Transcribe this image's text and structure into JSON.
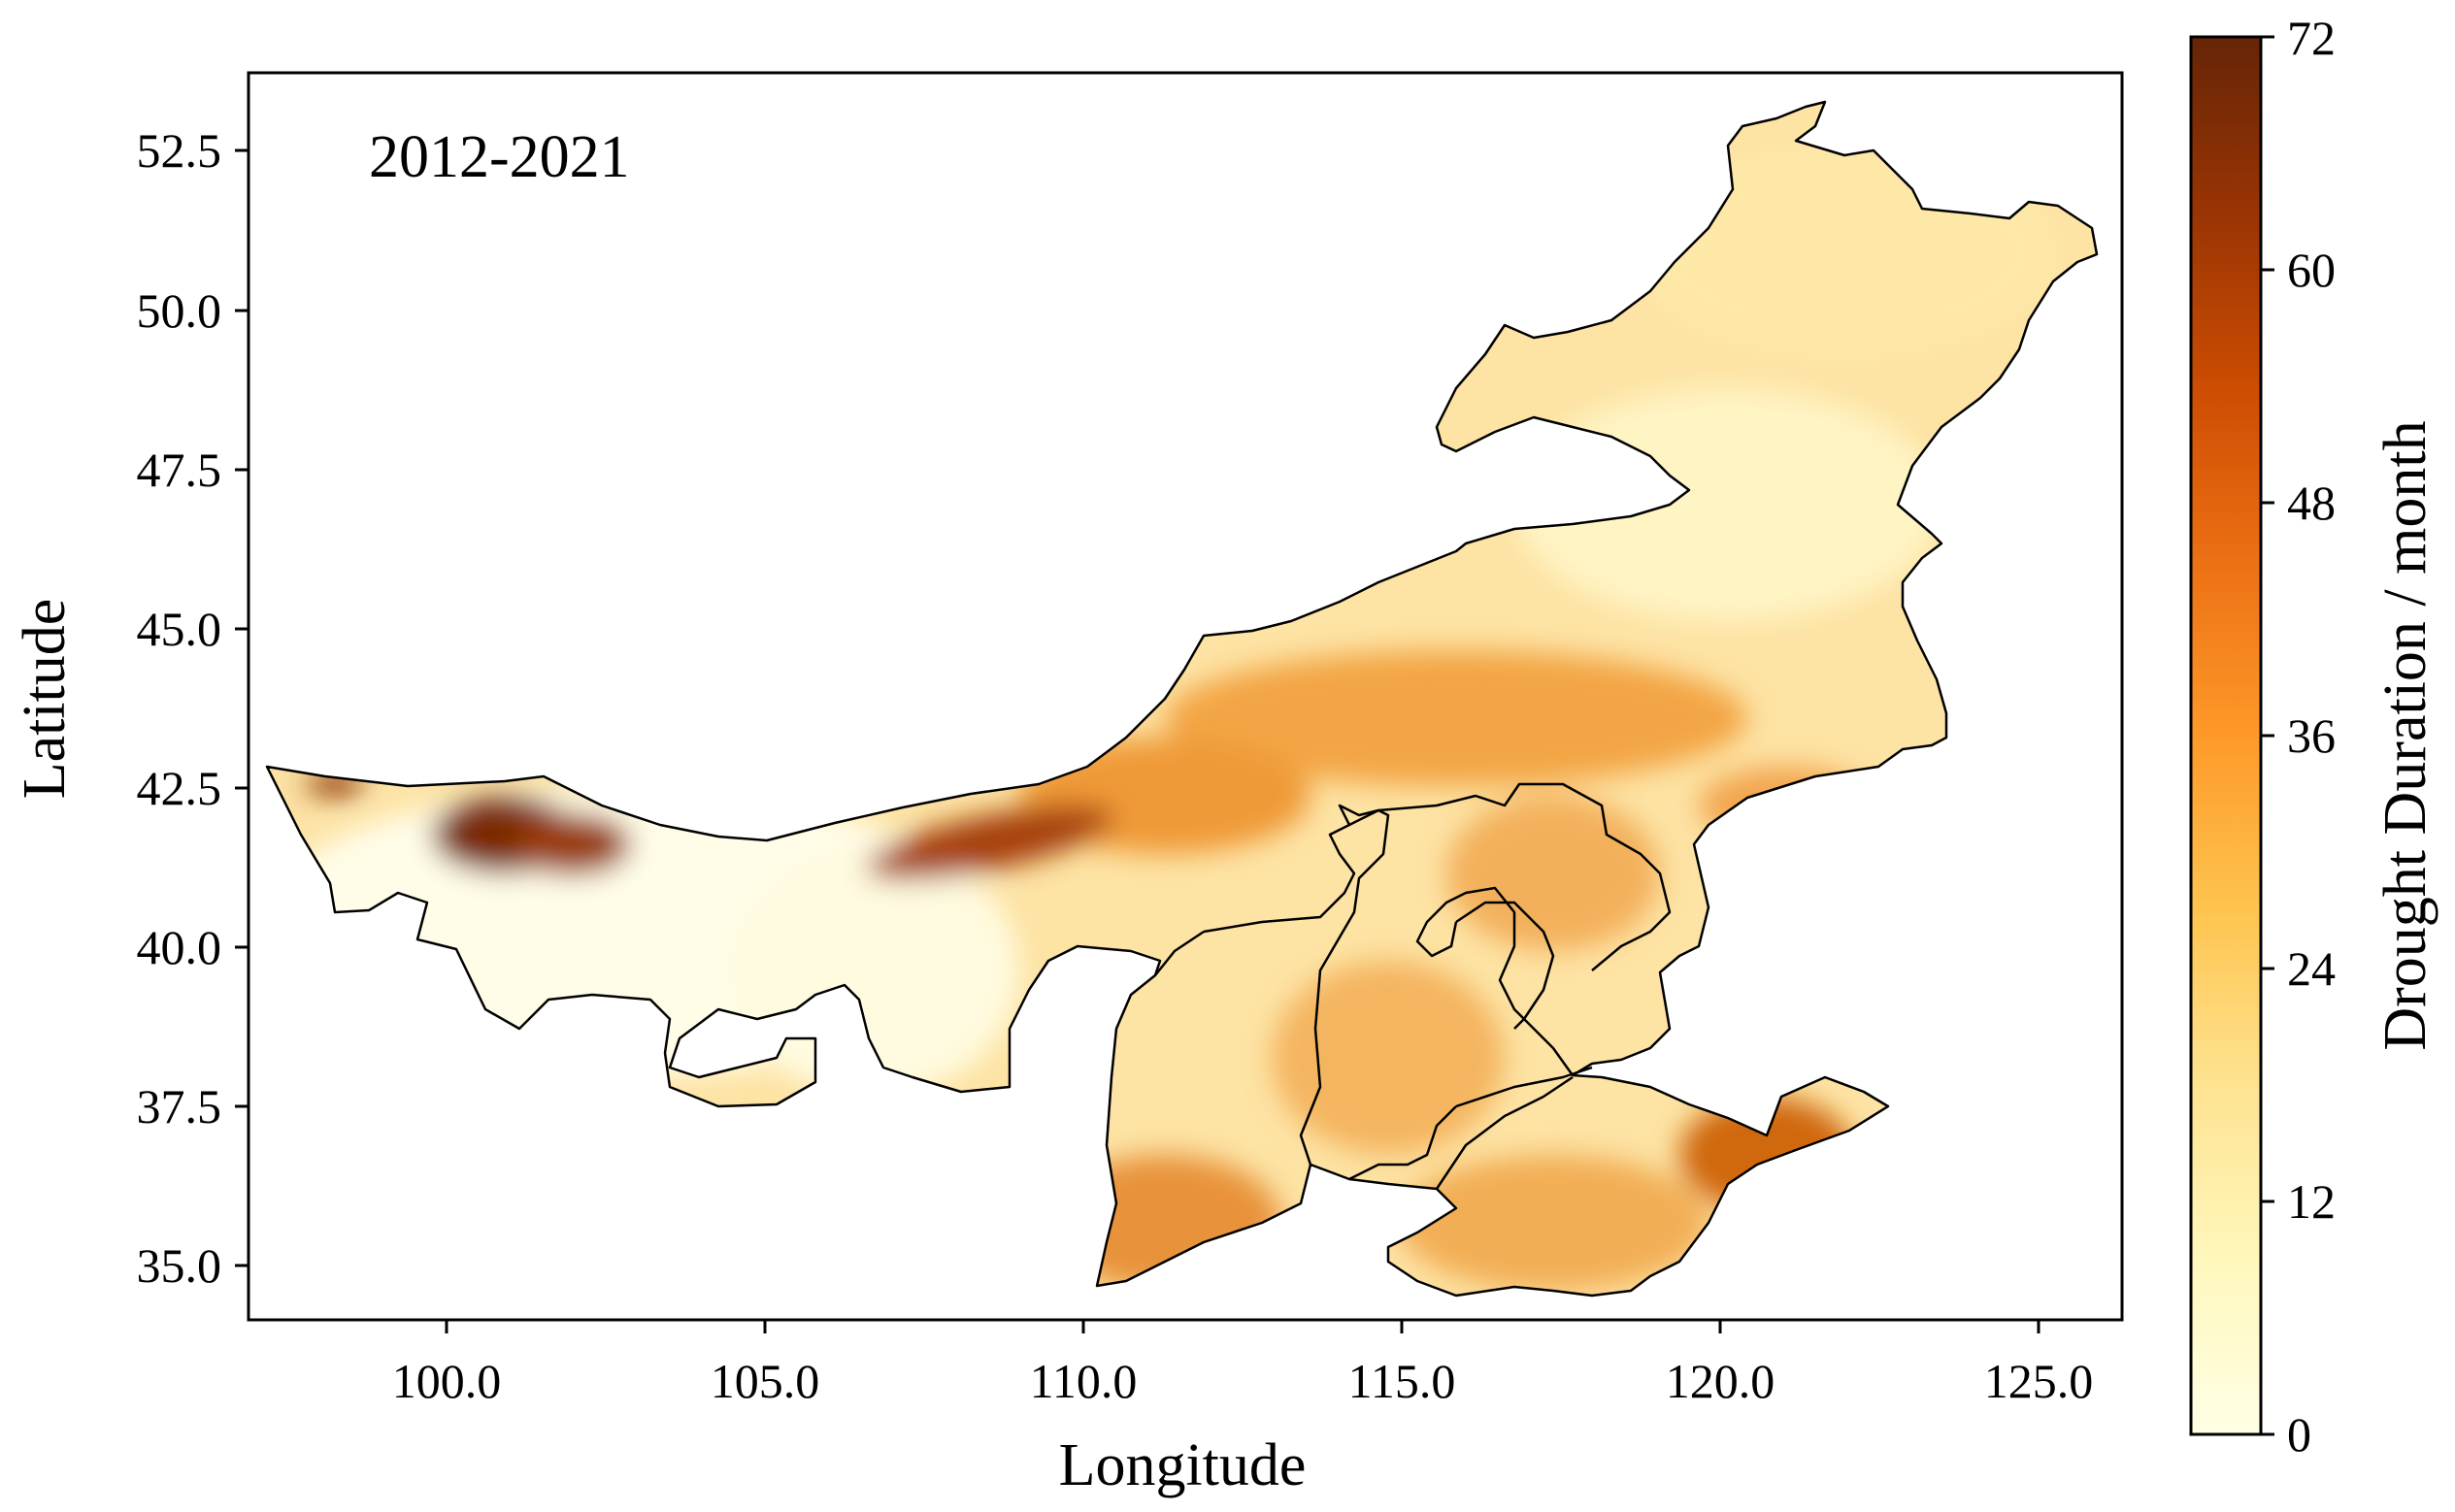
{
  "map": {
    "period_label": "2012-2021",
    "x_label": "Longitude",
    "y_label": "Latitude",
    "x_ticks": [
      "100.0",
      "105.0",
      "110.0",
      "115.0",
      "120.0",
      "125.0"
    ],
    "y_ticks": [
      "52.5",
      "50.0",
      "47.5",
      "45.0",
      "42.5",
      "40.0",
      "37.5",
      "35.0"
    ],
    "x_range": [
      96.9,
      126.3
    ],
    "y_range": [
      34.2,
      53.8
    ],
    "region_fill": "#fbe0a6",
    "outline_color": "#000000"
  },
  "colorbar": {
    "label": "Drought Duration / month",
    "ticks": [
      "0",
      "12",
      "24",
      "36",
      "48",
      "60",
      "72"
    ],
    "range": [
      0,
      72
    ],
    "colormap": "YlOrBr",
    "stops": [
      "#ffffe5",
      "#fff7bc",
      "#fee391",
      "#fec44f",
      "#fe9929",
      "#ec7014",
      "#cc4c02",
      "#993404",
      "#662506"
    ]
  }
}
